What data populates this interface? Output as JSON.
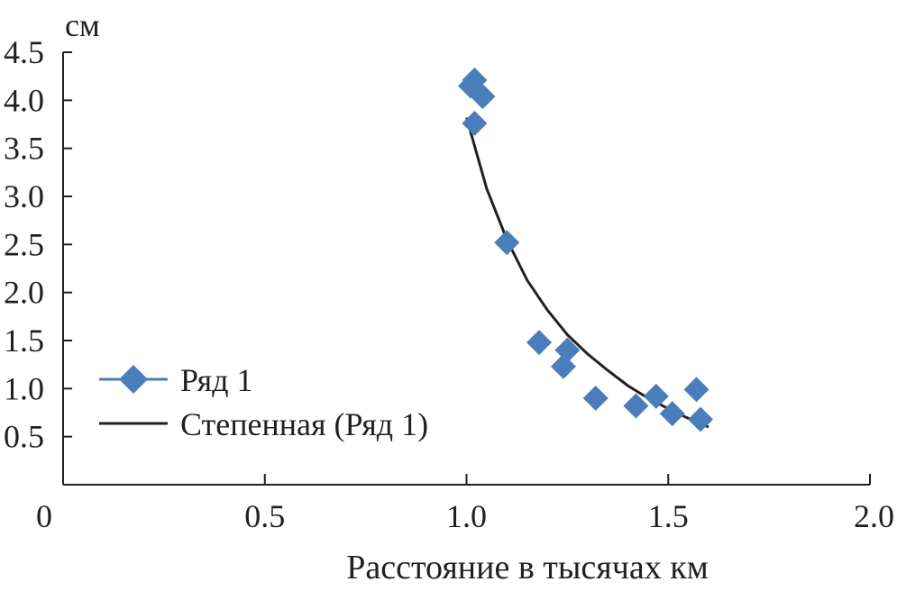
{
  "chart_data": {
    "type": "scatter",
    "title": "",
    "xlabel": "Расстояние в тысячах км",
    "ylabel": "см",
    "xlim": [
      0,
      2.0
    ],
    "ylim": [
      0,
      4.5
    ],
    "x_ticks": [
      "0",
      "0.5",
      "1.0",
      "1.5",
      "2.0"
    ],
    "y_ticks": [
      "0.5",
      "1.0",
      "1.5",
      "2.0",
      "2.5",
      "3.0",
      "3.5",
      "4.0",
      "4.5"
    ],
    "grid": false,
    "legend_position": "left",
    "series": [
      {
        "name": "Ряд 1",
        "marker": "diamond",
        "color": "#4a7ebb",
        "points": [
          {
            "x": 1.01,
            "y": 4.15
          },
          {
            "x": 1.02,
            "y": 4.21
          },
          {
            "x": 1.04,
            "y": 4.04
          },
          {
            "x": 1.02,
            "y": 3.76
          },
          {
            "x": 1.1,
            "y": 2.52
          },
          {
            "x": 1.18,
            "y": 1.48
          },
          {
            "x": 1.25,
            "y": 1.4
          },
          {
            "x": 1.24,
            "y": 1.23
          },
          {
            "x": 1.32,
            "y": 0.9
          },
          {
            "x": 1.42,
            "y": 0.82
          },
          {
            "x": 1.47,
            "y": 0.92
          },
          {
            "x": 1.51,
            "y": 0.74
          },
          {
            "x": 1.57,
            "y": 0.99
          },
          {
            "x": 1.58,
            "y": 0.68
          }
        ]
      },
      {
        "name": "Степенная (Ряд 1)",
        "type": "power-trendline",
        "color": "#231f20",
        "points": [
          {
            "x": 1.0,
            "y": 3.82
          },
          {
            "x": 1.05,
            "y": 3.08
          },
          {
            "x": 1.1,
            "y": 2.55
          },
          {
            "x": 1.15,
            "y": 2.13
          },
          {
            "x": 1.2,
            "y": 1.82
          },
          {
            "x": 1.25,
            "y": 1.56
          },
          {
            "x": 1.3,
            "y": 1.36
          },
          {
            "x": 1.35,
            "y": 1.19
          },
          {
            "x": 1.4,
            "y": 1.03
          },
          {
            "x": 1.45,
            "y": 0.9
          },
          {
            "x": 1.5,
            "y": 0.79
          },
          {
            "x": 1.55,
            "y": 0.69
          },
          {
            "x": 1.6,
            "y": 0.6
          }
        ]
      }
    ]
  }
}
